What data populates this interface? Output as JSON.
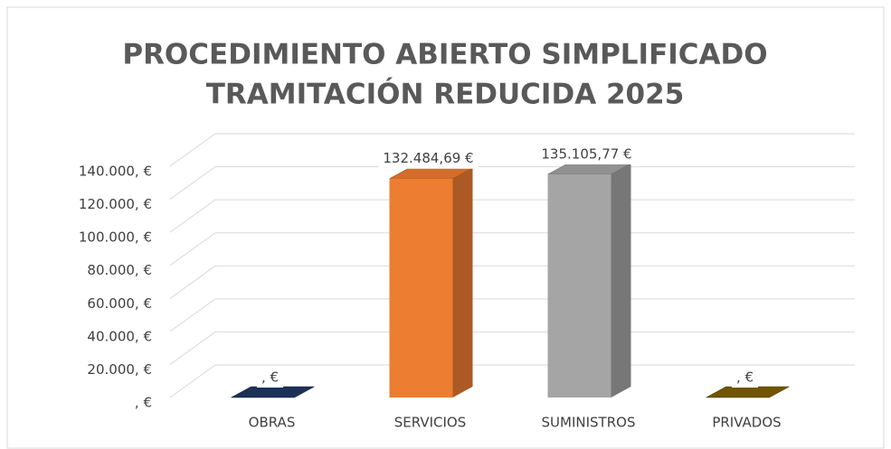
{
  "chart_data": {
    "type": "bar3d",
    "title": [
      "PROCEDIMIENTO ABIERTO SIMPLIFICADO",
      "TRAMITACIÓN REDUCIDA 2025"
    ],
    "categories": [
      "OBRAS",
      "SERVICIOS",
      "SUMINISTROS",
      "PRIVADOS"
    ],
    "values": [
      0,
      132484.69,
      135105.77,
      0
    ],
    "value_labels": [
      ", €",
      "132.484,69 €",
      "135.105,77 €",
      ", €"
    ],
    "colors": [
      "#1f3864",
      "#ed7d31",
      "#a5a5a5",
      "#7f6000"
    ],
    "ylim": [
      0,
      140000
    ],
    "yticks": [
      {
        "value": 0,
        "label": ", €"
      },
      {
        "value": 20000,
        "label": "20.000, €"
      },
      {
        "value": 40000,
        "label": "40.000, €"
      },
      {
        "value": 60000,
        "label": "60.000, €"
      },
      {
        "value": 80000,
        "label": "80.000, €"
      },
      {
        "value": 100000,
        "label": "100.000, €"
      },
      {
        "value": 120000,
        "label": "120.000, €"
      },
      {
        "value": 140000,
        "label": "140.000, €"
      }
    ],
    "grid": true
  }
}
